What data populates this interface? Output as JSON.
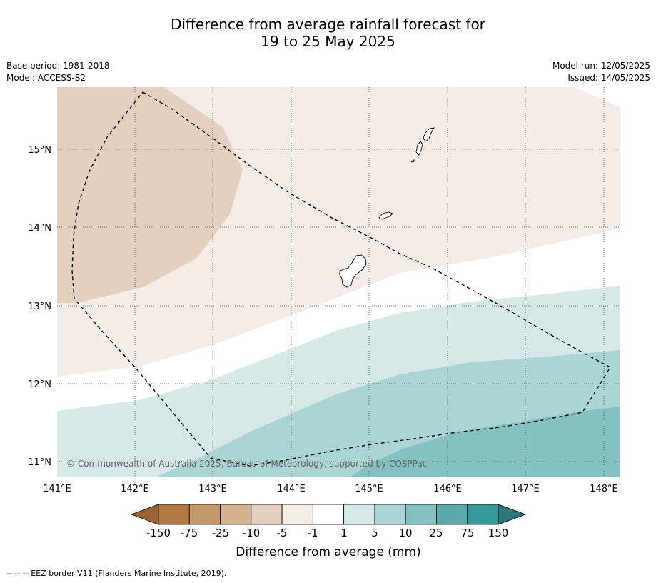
{
  "title": {
    "line1": "Difference from average rainfall forecast for",
    "line2": "19 to 25 May 2025"
  },
  "meta_left": {
    "base_period": "Base period: 1981-2018",
    "model": "Model: ACCESS-S2"
  },
  "meta_right": {
    "model_run": "Model run: 12/05/2025",
    "issued": "Issued: 14/05/2025"
  },
  "map": {
    "lon_range": [
      141.0,
      148.2
    ],
    "lat_range": [
      10.8,
      15.8
    ],
    "lon_ticks": [
      "141°E",
      "142°E",
      "143°E",
      "144°E",
      "145°E",
      "146°E",
      "147°E",
      "148°E"
    ],
    "lat_ticks": [
      "11°N",
      "12°N",
      "13°N",
      "14°N",
      "15°N"
    ],
    "copyright": "© Commonwealth of Australia 2025, Bureau of Meteorology, supported by COSPPac",
    "islands": [
      "Guam",
      "Rota",
      "Tinian",
      "Saipan",
      "Aguijan"
    ]
  },
  "legend": {
    "labels": [
      "-150",
      "-75",
      "-25",
      "-10",
      "-5",
      "-1",
      "1",
      "5",
      "10",
      "25",
      "75",
      "150"
    ],
    "title": "Difference from average (mm)",
    "colors": [
      "#9c6432",
      "#b07a42",
      "#c39769",
      "#d4b292",
      "#e4d0bf",
      "#f4ece7",
      "#ffffff",
      "#d6e9e8",
      "#abd5d4",
      "#84c1c1",
      "#5cabac",
      "#359a9a",
      "#2a7878"
    ]
  },
  "footnote": "--  --  -- EEZ border V11 (Flanders Marine Institute, 2019)."
}
